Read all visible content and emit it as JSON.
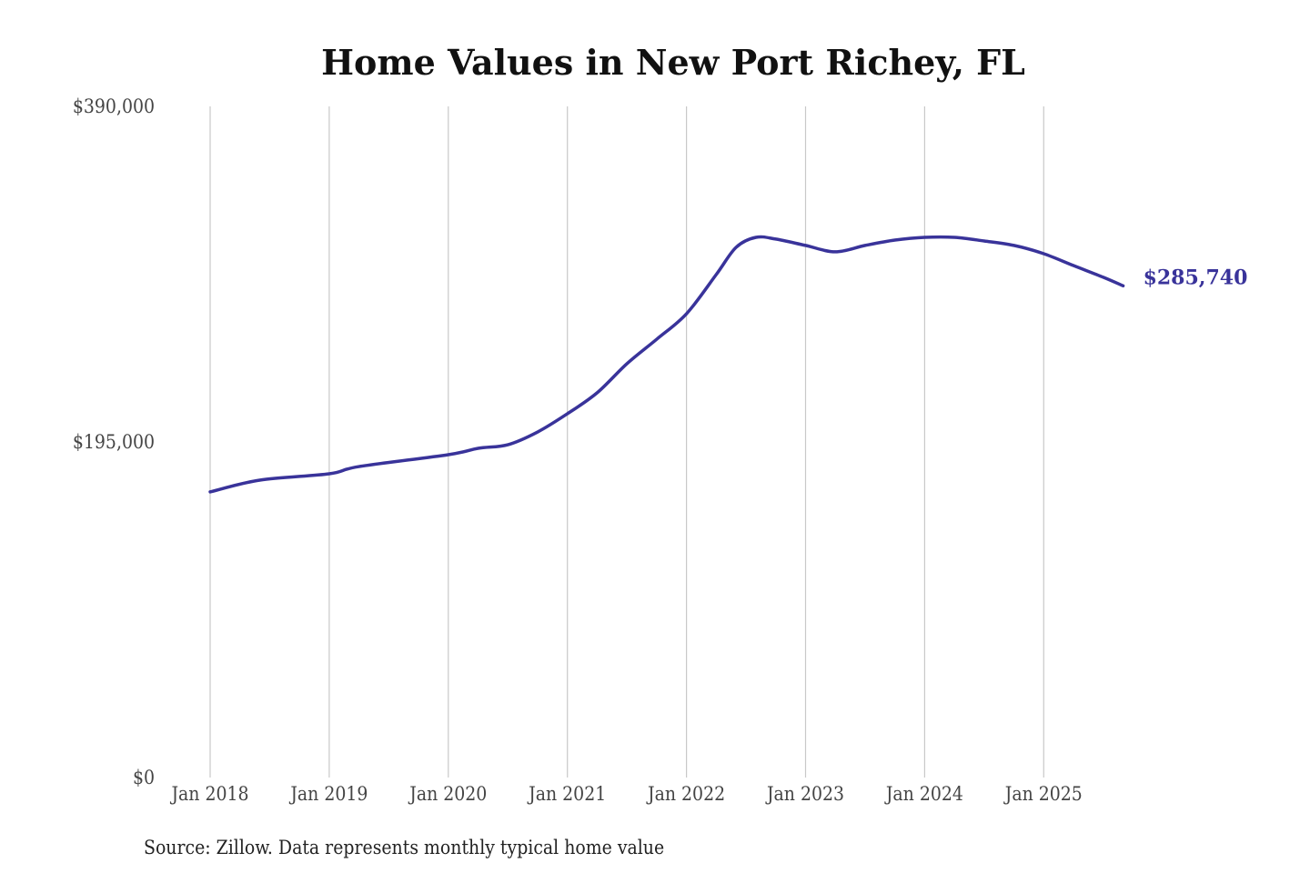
{
  "chart_data": {
    "type": "line",
    "title": "Home Values in New Port Richey, FL",
    "source": "Source: Zillow. Data represents monthly typical home value",
    "xlabel": "",
    "ylabel": "",
    "ylim": [
      0,
      390000
    ],
    "y_ticks": [
      0,
      195000,
      390000
    ],
    "y_tick_labels": [
      "$0",
      "$195,000",
      "$390,000"
    ],
    "x_ticks": [
      "2018-01",
      "2019-01",
      "2020-01",
      "2021-01",
      "2022-01",
      "2023-01",
      "2024-01",
      "2025-01"
    ],
    "x_tick_labels": [
      "Jan 2018",
      "Jan 2019",
      "Jan 2020",
      "Jan 2021",
      "Jan 2022",
      "Jan 2023",
      "Jan 2024",
      "Jan 2025"
    ],
    "grid": "vertical",
    "line_color": "#39339a",
    "end_label": "$285,740",
    "series": [
      {
        "x": [
          "2018-01",
          "2018-06",
          "2019-01",
          "2019-04",
          "2020-01",
          "2020-04",
          "2020-07",
          "2020-10",
          "2021-01",
          "2021-04",
          "2021-07",
          "2021-10",
          "2022-01",
          "2022-04",
          "2022-06",
          "2022-08",
          "2022-10",
          "2023-01",
          "2023-04",
          "2023-07",
          "2023-10",
          "2024-01",
          "2024-04",
          "2024-07",
          "2024-10",
          "2025-01",
          "2025-04",
          "2025-07",
          "2025-09"
        ],
        "values": [
          166000,
          172800,
          176500,
          180700,
          187600,
          191300,
          193400,
          200800,
          211400,
          223600,
          240500,
          254700,
          269500,
          292300,
          308100,
          313900,
          312900,
          309200,
          305500,
          309200,
          312300,
          313900,
          313900,
          311800,
          309200,
          304400,
          297500,
          290700,
          285740
        ]
      }
    ]
  }
}
